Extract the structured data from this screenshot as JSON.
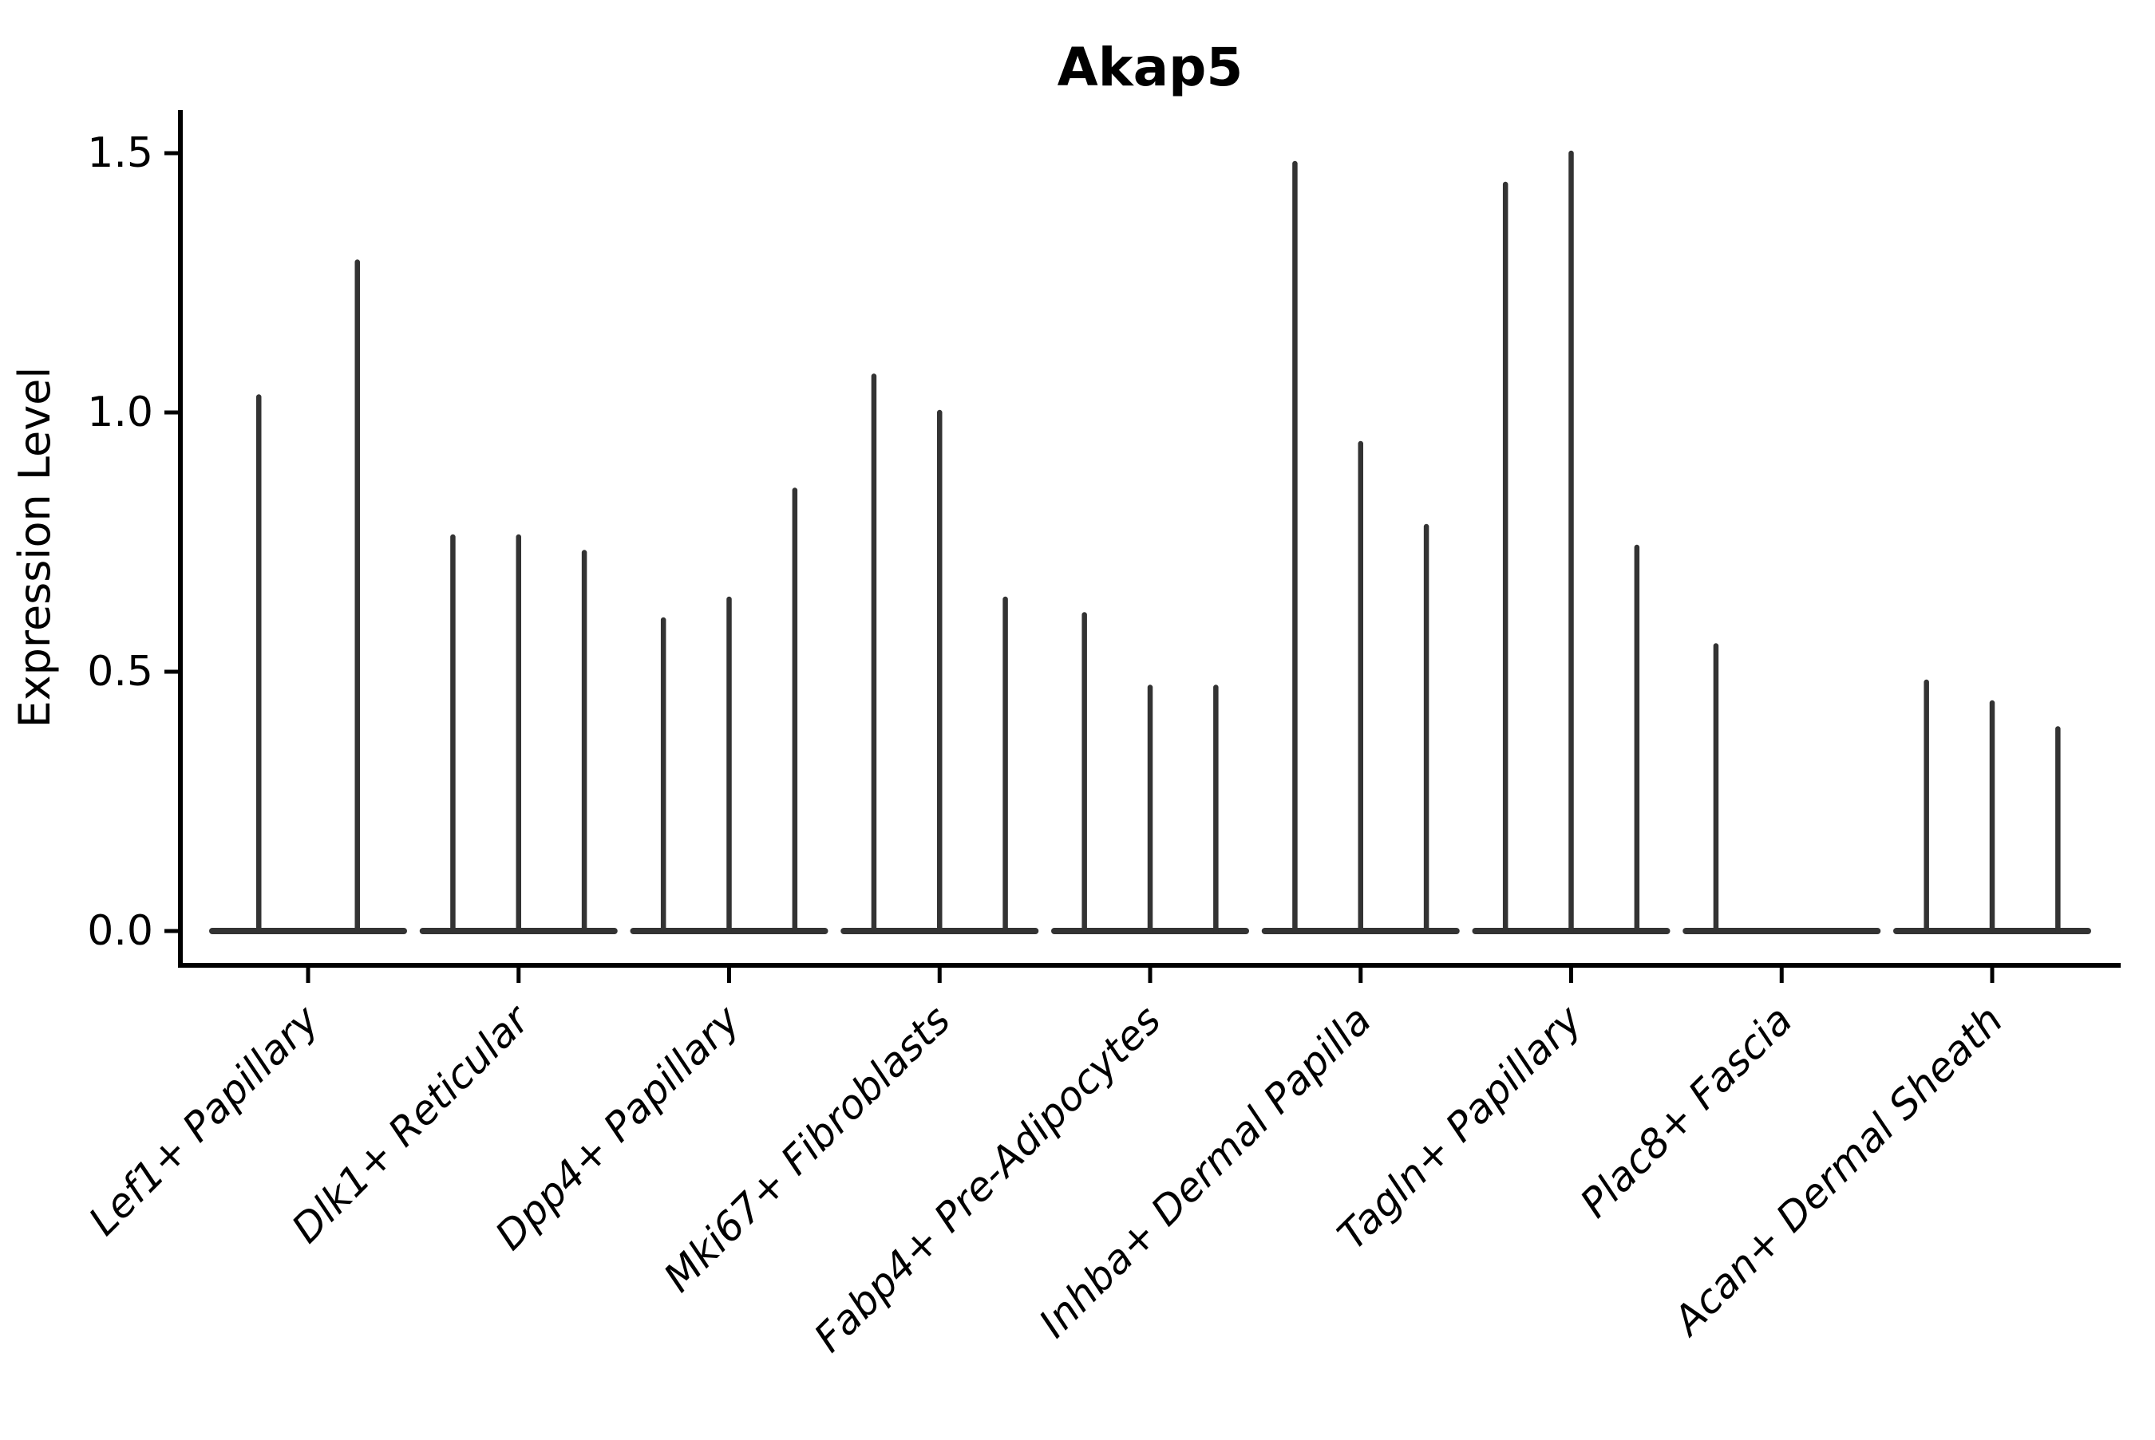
{
  "chart_data": {
    "type": "violin",
    "title": "Akap5",
    "xlabel": "",
    "ylabel": "Expression Level",
    "ytick_labels": [
      "0.0",
      "0.5",
      "1.0",
      "1.5"
    ],
    "yticks": [
      0.0,
      0.5,
      1.0,
      1.5
    ],
    "ylim": [
      -0.07,
      1.58
    ],
    "grid": false,
    "legend": false,
    "baseline_at_zero": true,
    "categories": [
      "Lef1+ Papillary",
      "Dlk1+ Reticular",
      "Dpp4+ Papillary",
      "Mki67+ Fibroblasts",
      "Fabp4+ Pre-Adipocytes",
      "Inhba+ Dermal Papilla",
      "Tagln+ Papillary",
      "Plac8+ Fascia",
      "Acan+ Dermal Sheath"
    ],
    "groups": [
      {
        "category": "Lef1+ Papillary",
        "violin_peaks": [
          1.03,
          1.29
        ]
      },
      {
        "category": "Dlk1+ Reticular",
        "violin_peaks": [
          0.76,
          0.76,
          0.73
        ]
      },
      {
        "category": "Dpp4+ Papillary",
        "violin_peaks": [
          0.6,
          0.64,
          0.85
        ]
      },
      {
        "category": "Mki67+ Fibroblasts",
        "violin_peaks": [
          1.07,
          1.0,
          0.64
        ]
      },
      {
        "category": "Fabp4+ Pre-Adipocytes",
        "violin_peaks": [
          0.61,
          0.47,
          0.47
        ]
      },
      {
        "category": "Inhba+ Dermal Papilla",
        "violin_peaks": [
          1.48,
          0.94,
          0.78
        ]
      },
      {
        "category": "Tagln+ Papillary",
        "violin_peaks": [
          1.44,
          1.5,
          0.74
        ]
      },
      {
        "category": "Plac8+ Fascia",
        "violin_peaks": [
          0.55,
          0.0,
          0.0
        ]
      },
      {
        "category": "Acan+ Dermal Sheath",
        "violin_peaks": [
          0.48,
          0.44,
          0.39
        ]
      }
    ],
    "style": {
      "violin_color": "#333333",
      "axis_color": "#000000",
      "background": "#ffffff"
    }
  }
}
